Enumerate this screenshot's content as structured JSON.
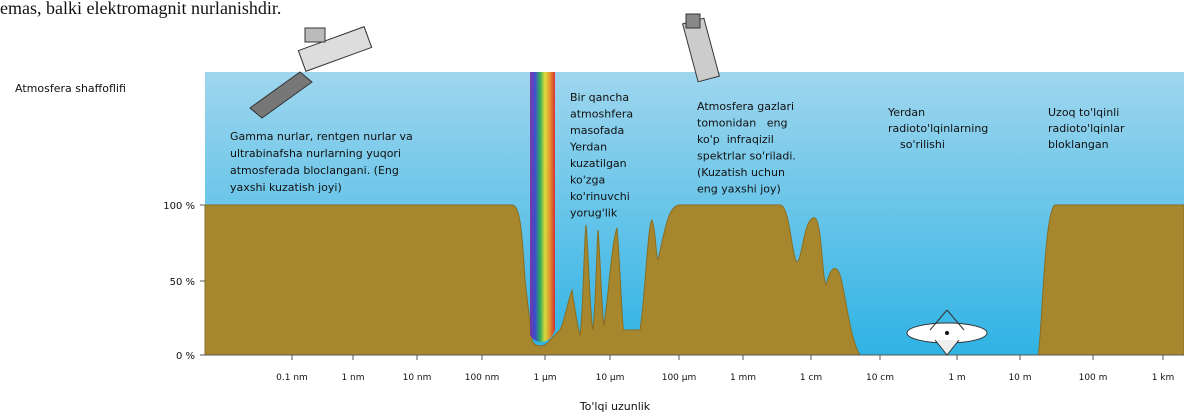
{
  "top_text": "emas, balki elektromagnit nurlanishdir.",
  "y_axis_label": "Atmosfera shaffoflifi",
  "y_ticks": [
    "100 %",
    "50 %",
    "0 %"
  ],
  "x_ticks": [
    "0.1 nm",
    "1 nm",
    "10 nm",
    "100 nm",
    "1 µm",
    "10 µm",
    "100 µm",
    "1 mm",
    "1 cm",
    "10 cm",
    "1 m",
    "10 m",
    "100 m",
    "1 km"
  ],
  "x_axis_label": "To'lqi uzunlik",
  "annotations": [
    {
      "lines": [
        "Gamma nurlar, rentgen nurlar va",
        "ultrabinafsha nurlarning yuqori",
        "atmosferada bloclangani. (Eng",
        "yaxshi kuzatish joyi)"
      ]
    },
    {
      "lines": [
        "Bir qancha",
        "atmoshfera",
        "masofada",
        "Yerdan",
        "kuzatilgan",
        "ko'zga",
        "ko'rinuvchi",
        "yorug'lik"
      ]
    },
    {
      "lines": [
        "Atmosfera gazlari",
        "tomonidan   eng",
        "ko'p  infraqizil",
        "spektrlar so'riladi.",
        "(Kuzatish uchun",
        "eng yaxshi joy)"
      ]
    },
    {
      "lines": [
        "Yerdan",
        "radioto'lqinlarning",
        "so'rilishi"
      ]
    },
    {
      "lines": [
        "Uzoq to'lqinli",
        "radioto'lqinlar",
        "bloklangan"
      ]
    }
  ]
}
